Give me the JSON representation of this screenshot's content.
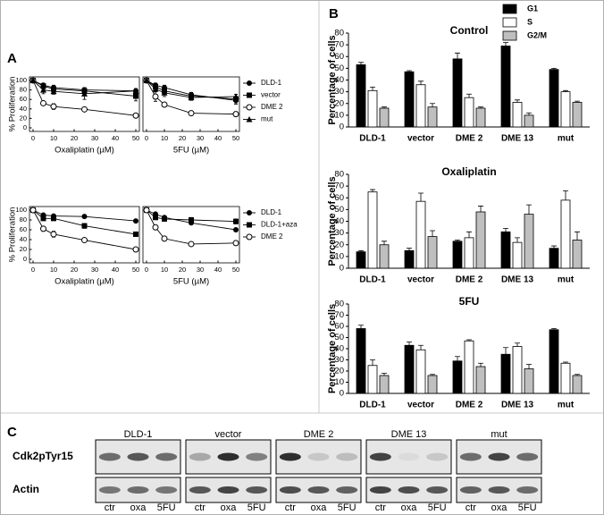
{
  "panels": [
    "A",
    "B",
    "C"
  ],
  "chart_data": [
    {
      "type": "line",
      "xlabel": "Oxaliplatin (µM)",
      "ylabel": "% Proliferation",
      "x": [
        0,
        5,
        10,
        25,
        50
      ],
      "xlim": [
        0,
        50
      ],
      "xticks": [
        0,
        10,
        20,
        30,
        40,
        50
      ],
      "ylim": [
        0,
        100
      ],
      "yticks": [
        0,
        20,
        40,
        60,
        80,
        100
      ],
      "series": [
        {
          "marker": "circle",
          "color": "#000000",
          "values": [
            100,
            90,
            85,
            80,
            78
          ],
          "errors": [
            2,
            4,
            4,
            5,
            4
          ]
        },
        {
          "marker": "square",
          "color": "#000000",
          "values": [
            100,
            88,
            82,
            78,
            67
          ],
          "errors": [
            2,
            6,
            8,
            6,
            10
          ]
        },
        {
          "marker": "open-circle",
          "color": "#000000",
          "values": [
            100,
            52,
            45,
            39,
            26
          ],
          "errors": [
            2,
            3,
            6,
            2,
            2
          ]
        },
        {
          "marker": "triangle",
          "color": "#000000",
          "values": [
            100,
            80,
            77,
            72,
            78
          ],
          "errors": [
            2,
            8,
            6,
            12,
            5
          ]
        }
      ]
    },
    {
      "type": "line",
      "xlabel": "5FU (µM)",
      "x": [
        0,
        5,
        10,
        25,
        50
      ],
      "xlim": [
        0,
        50
      ],
      "xticks": [
        0,
        10,
        20,
        30,
        40,
        50
      ],
      "ylim": [
        0,
        100
      ],
      "series": [
        {
          "name": "DLD-1",
          "marker": "circle",
          "color": "#000000",
          "values": [
            100,
            90,
            85,
            70,
            58
          ],
          "errors": [
            2,
            4,
            5,
            5,
            8
          ]
        },
        {
          "name": "vector",
          "marker": "square",
          "color": "#000000",
          "values": [
            100,
            87,
            78,
            67,
            61
          ],
          "errors": [
            2,
            7,
            6,
            6,
            10
          ]
        },
        {
          "name": "DME 2",
          "marker": "open-circle",
          "color": "#000000",
          "values": [
            100,
            66,
            49,
            31,
            29
          ],
          "errors": [
            2,
            10,
            3,
            5,
            5
          ]
        },
        {
          "name": "mut",
          "marker": "triangle",
          "color": "#000000",
          "values": [
            100,
            82,
            74,
            64,
            66
          ],
          "errors": [
            2,
            6,
            8,
            6,
            5
          ]
        }
      ]
    },
    {
      "type": "line",
      "xlabel": "Oxaliplatin (µM)",
      "ylabel": "% Proliferation",
      "x": [
        0,
        5,
        10,
        25,
        50
      ],
      "xlim": [
        0,
        50
      ],
      "xticks": [
        0,
        10,
        20,
        30,
        40,
        50
      ],
      "ylim": [
        0,
        100
      ],
      "yticks": [
        0,
        20,
        40,
        60,
        80,
        100
      ],
      "series": [
        {
          "marker": "circle",
          "color": "#000000",
          "values": [
            100,
            90,
            88,
            87,
            78
          ],
          "errors": [
            1,
            2,
            2,
            2,
            2
          ]
        },
        {
          "marker": "square",
          "color": "#000000",
          "values": [
            100,
            83,
            83,
            68,
            51
          ],
          "errors": [
            2,
            3,
            4,
            5,
            4
          ]
        },
        {
          "marker": "open-circle",
          "color": "#000000",
          "values": [
            100,
            62,
            51,
            39,
            20
          ],
          "errors": [
            2,
            5,
            6,
            2,
            1
          ]
        }
      ]
    },
    {
      "type": "line",
      "xlabel": "5FU (µM)",
      "x": [
        0,
        5,
        10,
        25,
        50
      ],
      "xlim": [
        0,
        50
      ],
      "xticks": [
        0,
        10,
        20,
        30,
        40,
        50
      ],
      "ylim": [
        0,
        100
      ],
      "series": [
        {
          "name": "DLD-1",
          "marker": "circle",
          "color": "#000000",
          "values": [
            100,
            92,
            85,
            74,
            60
          ],
          "errors": [
            1,
            2,
            2,
            2,
            2
          ]
        },
        {
          "name": "DLD-1+aza",
          "marker": "square",
          "color": "#000000",
          "values": [
            100,
            85,
            82,
            80,
            77
          ],
          "errors": [
            2,
            3,
            3,
            5,
            5
          ]
        },
        {
          "name": "DME 2",
          "marker": "open-circle",
          "color": "#000000",
          "values": [
            100,
            65,
            42,
            31,
            33
          ],
          "errors": [
            2,
            2,
            2,
            1,
            1
          ]
        }
      ]
    },
    {
      "type": "bar",
      "title": "Control",
      "ylabel": "Percentage of cells",
      "categories": [
        "DLD-1",
        "vector",
        "DME 2",
        "DME 13",
        "mut"
      ],
      "ylim": [
        0,
        80
      ],
      "yticks": [
        0,
        10,
        20,
        30,
        40,
        50,
        60,
        70,
        80
      ],
      "series": [
        {
          "name": "G1",
          "color": "#000000",
          "values": [
            53,
            47,
            58,
            69,
            49
          ],
          "errors": [
            2,
            1,
            5,
            3,
            1
          ]
        },
        {
          "name": "S",
          "color": "#ffffff",
          "values": [
            31,
            36,
            25,
            21,
            30
          ],
          "errors": [
            3,
            3,
            3,
            2,
            1
          ]
        },
        {
          "name": "G2/M",
          "color": "#bfbfbf",
          "values": [
            16,
            17,
            16,
            10,
            21
          ],
          "errors": [
            1,
            3,
            1,
            2,
            1
          ]
        }
      ]
    },
    {
      "type": "bar",
      "title": "Oxaliplatin",
      "ylabel": "Percentage of cells",
      "categories": [
        "DLD-1",
        "vector",
        "DME 2",
        "DME 13",
        "mut"
      ],
      "ylim": [
        0,
        80
      ],
      "yticks": [
        0,
        10,
        20,
        30,
        40,
        50,
        60,
        70,
        80
      ],
      "series": [
        {
          "color": "#000000",
          "values": [
            14,
            15,
            23,
            31,
            17
          ],
          "errors": [
            1,
            2,
            1,
            3,
            2
          ]
        },
        {
          "color": "#ffffff",
          "values": [
            65,
            57,
            26,
            22,
            58
          ],
          "errors": [
            2,
            7,
            5,
            4,
            8
          ]
        },
        {
          "color": "#bfbfbf",
          "values": [
            20,
            27,
            48,
            46,
            24
          ],
          "errors": [
            3,
            5,
            5,
            8,
            7
          ]
        }
      ]
    },
    {
      "type": "bar",
      "title": "5FU",
      "ylabel": "Percentage of cells",
      "categories": [
        "DLD-1",
        "vector",
        "DME 2",
        "DME 13",
        "mut"
      ],
      "ylim": [
        0,
        80
      ],
      "yticks": [
        0,
        10,
        20,
        30,
        40,
        50,
        60,
        70,
        80
      ],
      "series": [
        {
          "color": "#000000",
          "values": [
            58,
            43,
            29,
            35,
            57
          ],
          "errors": [
            3,
            3,
            4,
            6,
            1
          ]
        },
        {
          "color": "#ffffff",
          "values": [
            25,
            39,
            47,
            42,
            27
          ],
          "errors": [
            5,
            4,
            1,
            3,
            1
          ]
        },
        {
          "color": "#bfbfbf",
          "values": [
            16,
            16,
            24,
            22,
            16
          ],
          "errors": [
            2,
            1,
            3,
            4,
            1
          ]
        }
      ]
    }
  ],
  "blot": {
    "rows": [
      "Cdk2pTyr15",
      "Actin"
    ],
    "groups": [
      {
        "name": "DLD-1",
        "lanes": [
          "ctr",
          "oxa",
          "5FU"
        ]
      },
      {
        "name": "vector",
        "lanes": [
          "ctr",
          "oxa",
          "5FU"
        ]
      },
      {
        "name": "DME 2",
        "lanes": [
          "ctr",
          "oxa",
          "5FU"
        ]
      },
      {
        "name": "DME 13",
        "lanes": [
          "ctr",
          "oxa",
          "5FU"
        ]
      },
      {
        "name": "mut",
        "lanes": [
          "ctr",
          "oxa",
          "5FU"
        ]
      }
    ]
  }
}
